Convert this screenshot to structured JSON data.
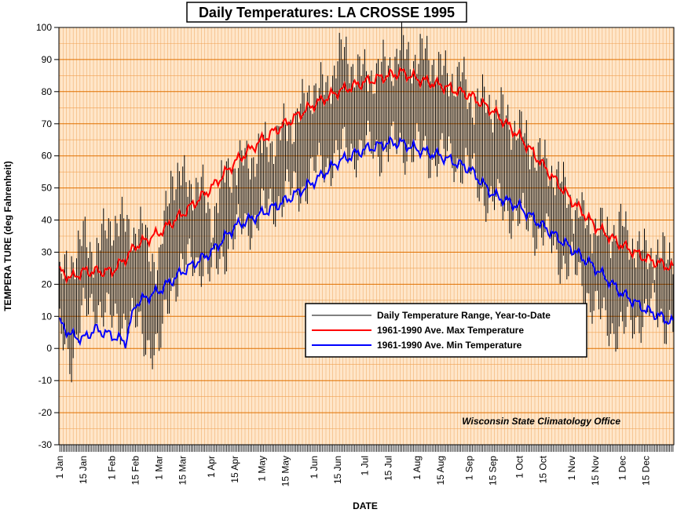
{
  "chart_data": {
    "type": "line",
    "title": "Daily Temperatures: LA CROSSE 1995",
    "xlabel": "DATE",
    "ylabel": "TEMPERA TURE (deg Fahrenheit)",
    "ylim": [
      -30,
      100
    ],
    "y_ticks": [
      100,
      90,
      80,
      70,
      60,
      50,
      40,
      30,
      20,
      10,
      0,
      -10,
      -20,
      -30
    ],
    "x_tick_labels": [
      "1 Jan",
      "15 Jan",
      "1 Feb",
      "15 Feb",
      "1 Mar",
      "15 Mar",
      "1 Apr",
      "15 Apr",
      "1 May",
      "15 May",
      "1 Jun",
      "15 Jun",
      "1 Jul",
      "15 Jul",
      "1 Aug",
      "15 Aug",
      "1 Sep",
      "15 Sep",
      "1 Oct",
      "15 Oct",
      "1 Nov",
      "15 Nov",
      "1 Dec",
      "15 Dec"
    ],
    "x_tick_days": [
      1,
      15,
      32,
      46,
      60,
      74,
      91,
      105,
      121,
      135,
      152,
      166,
      182,
      196,
      213,
      227,
      244,
      258,
      274,
      288,
      305,
      319,
      335,
      349
    ],
    "days_in_year": 365,
    "grid": true,
    "legend_position": "lower-right",
    "annotation": "Wisconsin State Climatology Office",
    "series": [
      {
        "name": "Daily Temperature Range, Year-to-Date",
        "color": "#000000",
        "kind": "range",
        "max_anchors": [
          [
            1,
            20
          ],
          [
            8,
            28
          ],
          [
            15,
            34
          ],
          [
            22,
            30
          ],
          [
            32,
            40
          ],
          [
            40,
            38
          ],
          [
            50,
            36
          ],
          [
            60,
            25
          ],
          [
            67,
            55
          ],
          [
            74,
            52
          ],
          [
            85,
            50
          ],
          [
            91,
            40
          ],
          [
            100,
            55
          ],
          [
            110,
            58
          ],
          [
            121,
            62
          ],
          [
            135,
            68
          ],
          [
            145,
            75
          ],
          [
            152,
            82
          ],
          [
            160,
            80
          ],
          [
            166,
            92
          ],
          [
            172,
            90
          ],
          [
            182,
            85
          ],
          [
            196,
            88
          ],
          [
            204,
            93
          ],
          [
            213,
            90
          ],
          [
            220,
            92
          ],
          [
            227,
            86
          ],
          [
            240,
            84
          ],
          [
            244,
            78
          ],
          [
            258,
            76
          ],
          [
            266,
            72
          ],
          [
            274,
            68
          ],
          [
            282,
            62
          ],
          [
            288,
            58
          ],
          [
            295,
            55
          ],
          [
            305,
            45
          ],
          [
            312,
            40
          ],
          [
            319,
            38
          ],
          [
            325,
            36
          ],
          [
            335,
            38
          ],
          [
            345,
            30
          ],
          [
            352,
            30
          ],
          [
            358,
            28
          ],
          [
            365,
            32
          ]
        ],
        "min_anchors": [
          [
            1,
            5
          ],
          [
            8,
            -2
          ],
          [
            15,
            10
          ],
          [
            22,
            15
          ],
          [
            32,
            8
          ],
          [
            40,
            10
          ],
          [
            50,
            5
          ],
          [
            60,
            -2
          ],
          [
            67,
            20
          ],
          [
            74,
            25
          ],
          [
            85,
            28
          ],
          [
            91,
            22
          ],
          [
            100,
            32
          ],
          [
            110,
            38
          ],
          [
            121,
            42
          ],
          [
            135,
            48
          ],
          [
            145,
            50
          ],
          [
            152,
            55
          ],
          [
            160,
            58
          ],
          [
            166,
            60
          ],
          [
            172,
            62
          ],
          [
            182,
            62
          ],
          [
            196,
            62
          ],
          [
            204,
            63
          ],
          [
            213,
            62
          ],
          [
            220,
            60
          ],
          [
            227,
            60
          ],
          [
            240,
            58
          ],
          [
            244,
            55
          ],
          [
            258,
            45
          ],
          [
            266,
            44
          ],
          [
            274,
            40
          ],
          [
            282,
            38
          ],
          [
            288,
            36
          ],
          [
            295,
            30
          ],
          [
            305,
            25
          ],
          [
            312,
            20
          ],
          [
            319,
            12
          ],
          [
            325,
            8
          ],
          [
            335,
            5
          ],
          [
            345,
            10
          ],
          [
            352,
            12
          ],
          [
            358,
            10
          ],
          [
            365,
            8
          ]
        ]
      },
      {
        "name": "1961-1990 Ave. Max Temperature",
        "color": "#ff0000",
        "x": [
          1,
          8,
          15,
          22,
          32,
          40,
          46,
          60,
          74,
          91,
          105,
          121,
          135,
          152,
          166,
          182,
          196,
          204,
          213,
          227,
          244,
          258,
          274,
          288,
          305,
          319,
          335,
          349,
          365
        ],
        "y": [
          24,
          22,
          24,
          24,
          24,
          28,
          32,
          36,
          42,
          50,
          58,
          65,
          70,
          76,
          80,
          83,
          85,
          86,
          84,
          82,
          79,
          74,
          66,
          57,
          46,
          38,
          32,
          28,
          25
        ]
      },
      {
        "name": "1961-1990 Ave. Min Temperature",
        "color": "#0000ff",
        "x": [
          1,
          8,
          15,
          22,
          32,
          40,
          46,
          60,
          74,
          91,
          105,
          121,
          135,
          152,
          166,
          182,
          196,
          204,
          213,
          227,
          244,
          258,
          274,
          288,
          305,
          319,
          335,
          349,
          365
        ],
        "y": [
          8,
          4,
          3,
          6,
          4,
          2,
          14,
          18,
          24,
          30,
          38,
          42,
          46,
          52,
          58,
          62,
          64,
          64,
          62,
          60,
          56,
          48,
          44,
          38,
          31,
          25,
          17,
          12,
          8
        ]
      }
    ]
  }
}
